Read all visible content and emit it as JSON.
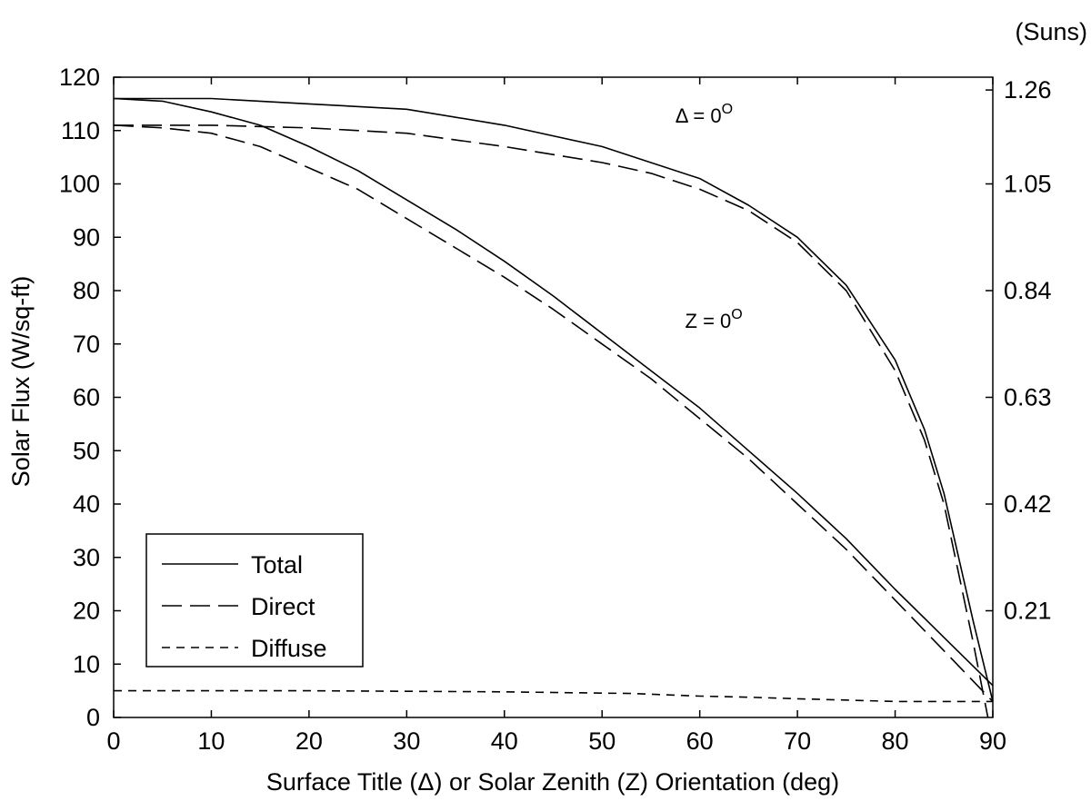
{
  "chart_data": {
    "type": "line",
    "title": "",
    "xlabel": "Surface Title (Δ) or Solar Zenith (Z) Orientation (deg)",
    "ylabel": "Solar Flux (W/sq-ft)",
    "y2label": "(Suns)",
    "xlim": [
      0,
      90
    ],
    "ylim": [
      0,
      120
    ],
    "x_ticks": [
      "0",
      "10",
      "20",
      "30",
      "40",
      "50",
      "60",
      "70",
      "80",
      "90"
    ],
    "y_ticks": [
      "0",
      "10",
      "20",
      "30",
      "40",
      "50",
      "60",
      "70",
      "80",
      "90",
      "100",
      "110",
      "120"
    ],
    "y2_ticks": [
      {
        "label": "0.21",
        "y": 20
      },
      {
        "label": "0.42",
        "y": 40
      },
      {
        "label": "0.63",
        "y": 60
      },
      {
        "label": "0.84",
        "y": 80
      },
      {
        "label": "1.05",
        "y": 100
      },
      {
        "label": "1.26",
        "y": 117.6
      }
    ],
    "grid": false,
    "legend_position": "bottom-left",
    "legend": [
      {
        "label": "Total",
        "style": "solid"
      },
      {
        "label": "Direct",
        "style": "long-dash"
      },
      {
        "label": "Diffuse",
        "style": "short-dash"
      }
    ],
    "annotations": [
      {
        "text": "Δ = 0",
        "superscript": "O",
        "x": 57.5,
        "y": 111.5
      },
      {
        "text": "Z = 0",
        "superscript": "O",
        "x": 58.5,
        "y": 73
      }
    ],
    "series": [
      {
        "style": "solid",
        "x": [
          0,
          10,
          20,
          30,
          40,
          50,
          55,
          60,
          65,
          70,
          75,
          80,
          83,
          85,
          88,
          90
        ],
        "y": [
          116,
          116,
          115,
          114,
          111,
          107,
          104,
          101,
          96,
          90,
          81,
          67,
          54,
          42,
          18,
          3
        ]
      },
      {
        "style": "long-dash",
        "x": [
          0,
          10,
          20,
          30,
          40,
          50,
          55,
          60,
          65,
          70,
          75,
          80,
          83,
          85,
          88,
          89.5
        ],
        "y": [
          111,
          111,
          110.5,
          109.5,
          107,
          104,
          102,
          99,
          95,
          89,
          80,
          65,
          52,
          40,
          14,
          0
        ]
      },
      {
        "style": "solid",
        "x": [
          0,
          5,
          10,
          15,
          20,
          25,
          30,
          35,
          40,
          45,
          50,
          55,
          60,
          65,
          70,
          75,
          80,
          85,
          90
        ],
        "y": [
          116,
          115.5,
          113.5,
          111,
          107,
          102.5,
          97,
          91.5,
          85.5,
          79,
          72,
          65,
          58,
          50,
          42,
          33.5,
          24,
          15,
          6
        ]
      },
      {
        "style": "long-dash",
        "x": [
          0,
          5,
          10,
          15,
          20,
          25,
          30,
          35,
          40,
          45,
          50,
          55,
          60,
          65,
          70,
          75,
          80,
          85,
          90
        ],
        "y": [
          111,
          110.5,
          109.5,
          107,
          103,
          99,
          93.5,
          88,
          82.5,
          76.5,
          70,
          63.5,
          56,
          48.5,
          40,
          31.5,
          22,
          12.5,
          3
        ]
      },
      {
        "style": "short-dash",
        "x": [
          0,
          20,
          40,
          53,
          60,
          65,
          70,
          80,
          90
        ],
        "y": [
          5,
          5,
          4.8,
          4.5,
          4,
          3.8,
          3.5,
          3,
          3
        ]
      }
    ]
  }
}
